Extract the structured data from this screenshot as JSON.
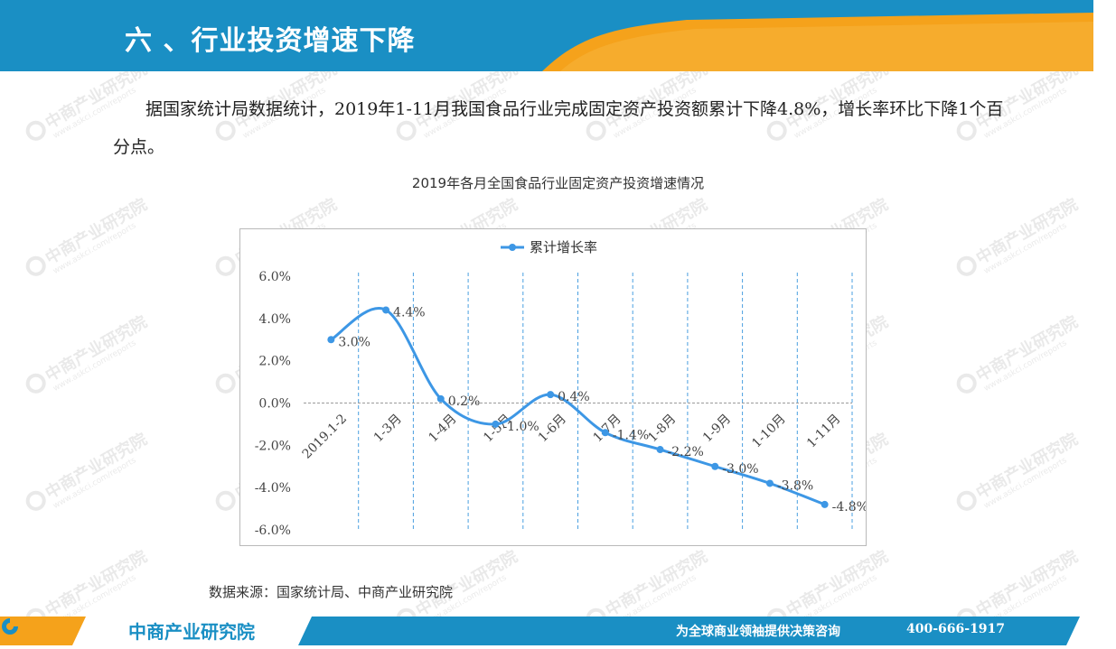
{
  "header": {
    "title": "六 、行业投资增速下降"
  },
  "intro": {
    "paragraph": "据国家统计局数据统计，2019年1-11月我国食品行业完成固定资产投资额累计下降4.8%，增长率环比下降1个百分点。"
  },
  "chart_data": {
    "type": "line",
    "title": "2019年各月全国食品行业固定资产投资增速情况",
    "categories": [
      "2019.1-2",
      "1-3月",
      "1-4月",
      "1-5月",
      "1-6月",
      "1-7月",
      "1-8月",
      "1-9月",
      "1-10月",
      "1-11月"
    ],
    "series": [
      {
        "name": "累计增长率",
        "values": [
          3.0,
          4.4,
          0.2,
          -1.0,
          0.4,
          -1.4,
          -2.2,
          -3.0,
          -3.8,
          -4.8
        ],
        "labels": [
          "3.0%",
          "4.4%",
          "0.2%",
          "-1.0%",
          "0.4%",
          "-1.4%",
          "-2.2%",
          "-3.0%",
          "-3.8%",
          "-4.8%"
        ],
        "color": "#3d97e5"
      }
    ],
    "y_ticks": [
      "6.0%",
      "4.0%",
      "2.0%",
      "0.0%",
      "-2.0%",
      "-4.0%",
      "-6.0%"
    ],
    "ylim": [
      -6.0,
      6.0
    ],
    "legend_position": "top",
    "grid": "vertical dashed"
  },
  "source": {
    "text": "数据来源：国家统计局、中商产业研究院"
  },
  "footer": {
    "logo_text": "中商产业研究院",
    "slogan": "为全球商业领袖提供决策咨询",
    "phone": "400-666-1917"
  },
  "watermark": {
    "name": "中商产业研究院",
    "url": "www.askci.com/reports"
  },
  "colors": {
    "brand_blue": "#1a8fc4",
    "accent_orange": "#f5a21b",
    "line_blue": "#3d97e5"
  }
}
